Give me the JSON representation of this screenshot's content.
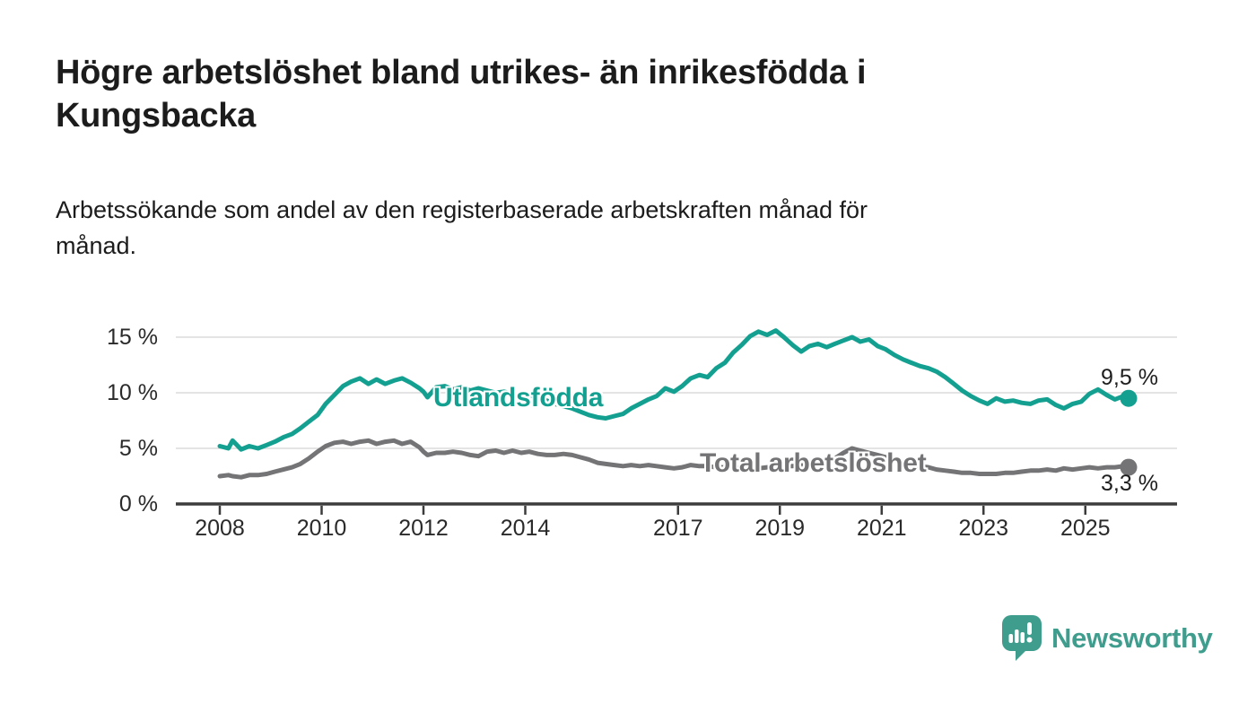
{
  "header": {
    "title_lines": [
      "Högre arbetslöshet bland utrikes- än inrikesfödda i",
      "Kungsbacka"
    ],
    "subtitle_lines": [
      "Arbetssökande som andel av den registerbaserade arbetskraften månad för",
      "månad."
    ]
  },
  "chart_data": {
    "type": "line",
    "unit": "%",
    "x_axis": {
      "tick_years": [
        2008,
        2010,
        2012,
        2014,
        2017,
        2019,
        2021,
        2023,
        2025
      ],
      "tick_labels": [
        "2008",
        "2010",
        "2012",
        "2014",
        "2017",
        "2019",
        "2021",
        "2023",
        "2025"
      ],
      "range": [
        2008.0,
        2025.85
      ]
    },
    "y_axis": {
      "ticks": [
        0,
        5,
        10,
        15
      ],
      "tick_labels": [
        "0 %",
        "5 %",
        "10 %",
        "15 %"
      ],
      "range": [
        0,
        16.5
      ],
      "grid": true
    },
    "colors": {
      "grid": "#dbdbdb",
      "axis": "#3c3c3c"
    },
    "series": [
      {
        "name": "Utlandsfödda",
        "color": "#14a090",
        "end_value": 9.5,
        "end_label": "9,5 %",
        "x": [
          2008.0,
          2008.17,
          2008.25,
          2008.42,
          2008.58,
          2008.75,
          2008.92,
          2009.08,
          2009.25,
          2009.42,
          2009.58,
          2009.75,
          2009.92,
          2010.08,
          2010.25,
          2010.42,
          2010.58,
          2010.75,
          2010.92,
          2011.08,
          2011.25,
          2011.42,
          2011.58,
          2011.75,
          2011.92,
          2012.0,
          2012.08,
          2012.25,
          2012.42,
          2012.58,
          2012.75,
          2012.92,
          2013.08,
          2013.25,
          2013.42,
          2013.58,
          2013.75,
          2013.92,
          2014.08,
          2014.25,
          2014.42,
          2014.58,
          2014.75,
          2014.92,
          2015.08,
          2015.25,
          2015.42,
          2015.58,
          2015.75,
          2015.92,
          2016.08,
          2016.25,
          2016.42,
          2016.58,
          2016.75,
          2016.92,
          2017.08,
          2017.25,
          2017.42,
          2017.58,
          2017.75,
          2017.92,
          2018.08,
          2018.25,
          2018.42,
          2018.58,
          2018.75,
          2018.92,
          2019.08,
          2019.25,
          2019.42,
          2019.58,
          2019.75,
          2019.92,
          2020.08,
          2020.25,
          2020.42,
          2020.58,
          2020.75,
          2020.92,
          2021.08,
          2021.25,
          2021.42,
          2021.58,
          2021.75,
          2021.92,
          2022.08,
          2022.25,
          2022.42,
          2022.58,
          2022.75,
          2022.92,
          2023.08,
          2023.25,
          2023.42,
          2023.58,
          2023.75,
          2023.92,
          2024.08,
          2024.25,
          2024.42,
          2024.58,
          2024.75,
          2024.92,
          2025.08,
          2025.25,
          2025.42,
          2025.58,
          2025.75,
          2025.85
        ],
        "values": [
          5.2,
          5.0,
          5.7,
          4.9,
          5.2,
          5.0,
          5.3,
          5.6,
          6.0,
          6.3,
          6.8,
          7.4,
          8.0,
          9.0,
          9.8,
          10.6,
          11.0,
          11.3,
          10.8,
          11.2,
          10.8,
          11.1,
          11.3,
          10.9,
          10.4,
          10.1,
          9.6,
          10.5,
          10.6,
          10.3,
          10.5,
          10.2,
          10.4,
          10.2,
          10.0,
          10.1,
          9.9,
          9.6,
          9.8,
          9.5,
          9.3,
          9.0,
          8.8,
          8.6,
          8.3,
          8.0,
          7.8,
          7.7,
          7.9,
          8.1,
          8.6,
          9.0,
          9.4,
          9.7,
          10.4,
          10.1,
          10.6,
          11.3,
          11.6,
          11.4,
          12.2,
          12.7,
          13.6,
          14.3,
          15.1,
          15.5,
          15.2,
          15.6,
          15.0,
          14.3,
          13.7,
          14.2,
          14.4,
          14.1,
          14.4,
          14.7,
          15.0,
          14.6,
          14.8,
          14.2,
          13.9,
          13.4,
          13.0,
          12.7,
          12.4,
          12.2,
          11.9,
          11.4,
          10.8,
          10.2,
          9.7,
          9.3,
          9.0,
          9.5,
          9.2,
          9.3,
          9.1,
          9.0,
          9.3,
          9.4,
          8.9,
          8.6,
          9.0,
          9.2,
          9.9,
          10.3,
          9.8,
          9.4,
          9.7,
          9.5
        ]
      },
      {
        "name": "Total arbetslöshet",
        "color": "#747476",
        "end_value": 3.3,
        "end_label": "3,3 %",
        "x": [
          2008.0,
          2008.17,
          2008.25,
          2008.42,
          2008.58,
          2008.75,
          2008.92,
          2009.08,
          2009.25,
          2009.42,
          2009.58,
          2009.75,
          2009.92,
          2010.08,
          2010.25,
          2010.42,
          2010.58,
          2010.75,
          2010.92,
          2011.08,
          2011.25,
          2011.42,
          2011.58,
          2011.75,
          2011.92,
          2012.0,
          2012.08,
          2012.25,
          2012.42,
          2012.58,
          2012.75,
          2012.92,
          2013.08,
          2013.25,
          2013.42,
          2013.58,
          2013.75,
          2013.92,
          2014.08,
          2014.25,
          2014.42,
          2014.58,
          2014.75,
          2014.92,
          2015.08,
          2015.25,
          2015.42,
          2015.58,
          2015.75,
          2015.92,
          2016.08,
          2016.25,
          2016.42,
          2016.58,
          2016.75,
          2016.92,
          2017.08,
          2017.25,
          2017.42,
          2017.58,
          2017.75,
          2017.92,
          2018.08,
          2018.25,
          2018.42,
          2018.58,
          2018.75,
          2018.92,
          2019.08,
          2019.25,
          2019.42,
          2019.58,
          2019.75,
          2019.92,
          2020.08,
          2020.25,
          2020.42,
          2020.58,
          2020.75,
          2020.92,
          2021.08,
          2021.25,
          2021.42,
          2021.58,
          2021.75,
          2021.92,
          2022.08,
          2022.25,
          2022.42,
          2022.58,
          2022.75,
          2022.92,
          2023.08,
          2023.25,
          2023.42,
          2023.58,
          2023.75,
          2023.92,
          2024.08,
          2024.25,
          2024.42,
          2024.58,
          2024.75,
          2024.92,
          2025.08,
          2025.25,
          2025.42,
          2025.58,
          2025.75,
          2025.85
        ],
        "values": [
          2.5,
          2.6,
          2.5,
          2.4,
          2.6,
          2.6,
          2.7,
          2.9,
          3.1,
          3.3,
          3.6,
          4.1,
          4.7,
          5.2,
          5.5,
          5.6,
          5.4,
          5.6,
          5.7,
          5.4,
          5.6,
          5.7,
          5.4,
          5.6,
          5.1,
          4.7,
          4.4,
          4.6,
          4.6,
          4.7,
          4.6,
          4.4,
          4.3,
          4.7,
          4.8,
          4.6,
          4.8,
          4.6,
          4.7,
          4.5,
          4.4,
          4.4,
          4.5,
          4.4,
          4.2,
          4.0,
          3.7,
          3.6,
          3.5,
          3.4,
          3.5,
          3.4,
          3.5,
          3.4,
          3.3,
          3.2,
          3.3,
          3.5,
          3.4,
          3.4,
          3.3,
          3.3,
          3.3,
          3.2,
          3.2,
          3.2,
          3.3,
          3.3,
          3.4,
          3.4,
          3.5,
          3.5,
          3.6,
          3.8,
          4.1,
          4.6,
          5.0,
          4.8,
          4.6,
          4.4,
          4.2,
          4.0,
          3.8,
          3.6,
          3.4,
          3.3,
          3.1,
          3.0,
          2.9,
          2.8,
          2.8,
          2.7,
          2.7,
          2.7,
          2.8,
          2.8,
          2.9,
          3.0,
          3.0,
          3.1,
          3.0,
          3.2,
          3.1,
          3.2,
          3.3,
          3.2,
          3.3,
          3.3,
          3.4,
          3.3
        ]
      }
    ]
  },
  "footer": {
    "brand": "Newsworthy",
    "logo_color": "#3f9d8e"
  }
}
